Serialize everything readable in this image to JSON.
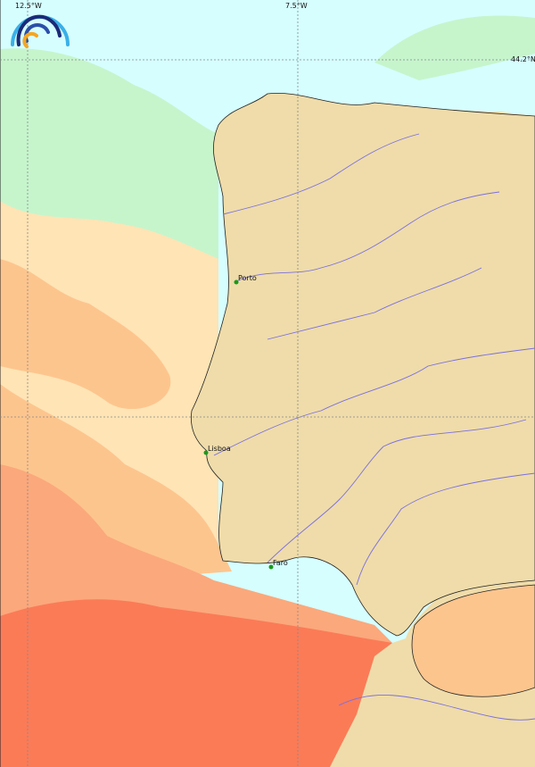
{
  "map": {
    "grid_labels": {
      "lon_left": "12.5°W",
      "lon_right": "7.5°W",
      "lat_top": "44.2°N"
    },
    "cities": [
      {
        "name": "Porto"
      },
      {
        "name": "Lisboa"
      },
      {
        "name": "Faro"
      }
    ],
    "colors": {
      "sea_cold": "#d6feff",
      "sea_cool": "#c6f5cc",
      "sea_mild": "#ffe4b5",
      "sea_warm": "#fdc58e",
      "sea_warmer": "#fba87c",
      "sea_hot": "#fb7b57",
      "land": "#efdcaa",
      "river": "#7b6fe0",
      "city_marker": "#1a9a1a"
    },
    "logo": "rainbow-arcs-logo"
  }
}
